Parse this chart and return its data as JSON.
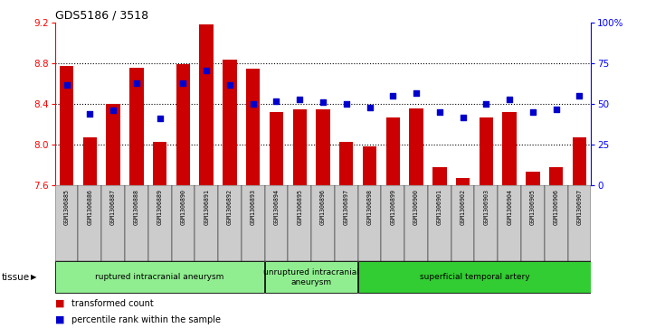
{
  "title": "GDS5186 / 3518",
  "samples": [
    "GSM1306885",
    "GSM1306886",
    "GSM1306887",
    "GSM1306888",
    "GSM1306889",
    "GSM1306890",
    "GSM1306891",
    "GSM1306892",
    "GSM1306893",
    "GSM1306894",
    "GSM1306895",
    "GSM1306896",
    "GSM1306897",
    "GSM1306898",
    "GSM1306899",
    "GSM1306900",
    "GSM1306901",
    "GSM1306902",
    "GSM1306903",
    "GSM1306904",
    "GSM1306905",
    "GSM1306906",
    "GSM1306907"
  ],
  "transformed_count": [
    8.78,
    8.07,
    8.4,
    8.76,
    8.03,
    8.79,
    9.19,
    8.84,
    8.75,
    8.32,
    8.35,
    8.35,
    8.03,
    7.98,
    8.27,
    8.36,
    7.78,
    7.67,
    8.27,
    8.32,
    7.73,
    7.78,
    8.07
  ],
  "percentile_rank": [
    62,
    44,
    46,
    63,
    41,
    63,
    71,
    62,
    50,
    52,
    53,
    51,
    50,
    48,
    55,
    57,
    45,
    42,
    50,
    53,
    45,
    47,
    55
  ],
  "ylim_left": [
    7.6,
    9.2
  ],
  "ylim_right": [
    0,
    100
  ],
  "yticks_left": [
    7.6,
    8.0,
    8.4,
    8.8,
    9.2
  ],
  "yticks_right": [
    0,
    25,
    50,
    75,
    100
  ],
  "ytick_labels_right": [
    "0",
    "25",
    "50",
    "75",
    "100%"
  ],
  "bar_color": "#CC0000",
  "dot_color": "#0000CC",
  "bar_width": 0.6,
  "baseline": 7.6,
  "legend_label_bar": "transformed count",
  "legend_label_dot": "percentile rank within the sample",
  "tissue_label": "tissue",
  "tick_bg_color": "#CCCCCC",
  "group_defs": [
    {
      "label": "ruptured intracranial aneurysm",
      "start": 0,
      "end": 8,
      "color": "#90EE90"
    },
    {
      "label": "unruptured intracranial\naneurysm",
      "start": 9,
      "end": 12,
      "color": "#90EE90"
    },
    {
      "label": "superficial temporal artery",
      "start": 13,
      "end": 22,
      "color": "#32CD32"
    }
  ]
}
